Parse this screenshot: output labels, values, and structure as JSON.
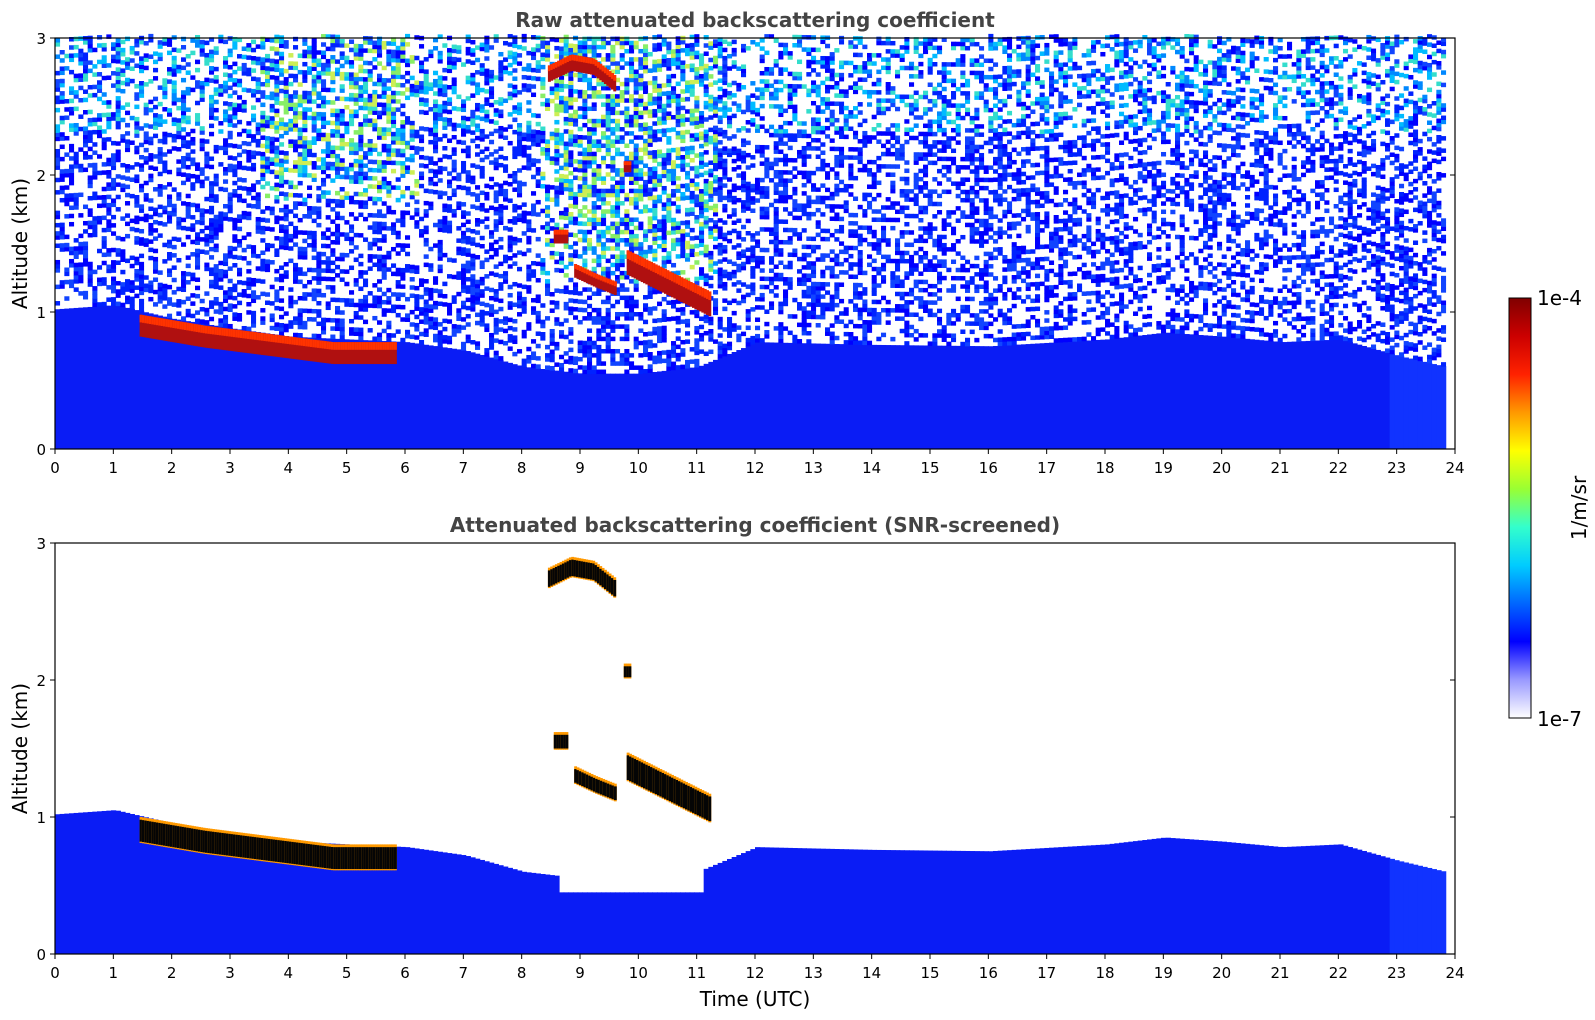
{
  "chart_data": [
    {
      "type": "heatmap",
      "title": "Raw attenuated backscattering coefficient",
      "xlabel": "",
      "ylabel": "Altitude (km)",
      "xlim": [
        0,
        24
      ],
      "ylim": [
        0,
        3
      ],
      "x_ticks": [
        "0",
        "1",
        "2",
        "3",
        "4",
        "5",
        "6",
        "7",
        "8",
        "9",
        "10",
        "11",
        "12",
        "13",
        "14",
        "15",
        "16",
        "17",
        "18",
        "19",
        "20",
        "21",
        "22",
        "23",
        "24"
      ],
      "y_ticks": [
        "0",
        "1",
        "2",
        "3"
      ],
      "data_time_range_utc": [
        0,
        23.8
      ],
      "boundary_layer_top_km": [
        {
          "x": 0,
          "y": 1.02
        },
        {
          "x": 1,
          "y": 1.05
        },
        {
          "x": 2,
          "y": 0.95
        },
        {
          "x": 3,
          "y": 0.88
        },
        {
          "x": 4,
          "y": 0.82
        },
        {
          "x": 5,
          "y": 0.8
        },
        {
          "x": 6,
          "y": 0.78
        },
        {
          "x": 7,
          "y": 0.72
        },
        {
          "x": 8,
          "y": 0.6
        },
        {
          "x": 9,
          "y": 0.55
        },
        {
          "x": 10,
          "y": 0.55
        },
        {
          "x": 11,
          "y": 0.6
        },
        {
          "x": 12,
          "y": 0.78
        },
        {
          "x": 14,
          "y": 0.76
        },
        {
          "x": 16,
          "y": 0.75
        },
        {
          "x": 18,
          "y": 0.8
        },
        {
          "x": 19,
          "y": 0.85
        },
        {
          "x": 20,
          "y": 0.82
        },
        {
          "x": 21,
          "y": 0.78
        },
        {
          "x": 22,
          "y": 0.8
        },
        {
          "x": 23,
          "y": 0.68
        },
        {
          "x": 23.8,
          "y": 0.6
        }
      ],
      "strong_layers": [
        {
          "x_start": 1.45,
          "x_end": 5.85,
          "top_km": [
            0.98,
            0.9,
            0.84,
            0.78,
            0.78
          ],
          "thickness_km": 0.16
        },
        {
          "x_start": 8.45,
          "x_end": 9.6,
          "top_km": [
            2.8,
            2.88,
            2.85,
            2.72
          ],
          "thickness_km": 0.12
        },
        {
          "x_start": 9.75,
          "x_end": 9.85,
          "top_km": [
            2.1
          ],
          "thickness_km": 0.08
        },
        {
          "x_start": 8.55,
          "x_end": 8.75,
          "top_km": [
            1.6
          ],
          "thickness_km": 0.1
        },
        {
          "x_start": 8.9,
          "x_end": 9.6,
          "top_km": [
            1.35,
            1.28,
            1.22
          ],
          "thickness_km": 0.1
        },
        {
          "x_start": 9.8,
          "x_end": 11.2,
          "top_km": [
            1.45,
            1.35,
            1.25,
            1.15
          ],
          "thickness_km": 0.18
        }
      ]
    },
    {
      "type": "heatmap",
      "title": "Attenuated backscattering coefficient (SNR-screened)",
      "xlabel": "Time (UTC)",
      "ylabel": "Altitude (km)",
      "xlim": [
        0,
        24
      ],
      "ylim": [
        0,
        3
      ],
      "x_ticks": [
        "0",
        "1",
        "2",
        "3",
        "4",
        "5",
        "6",
        "7",
        "8",
        "9",
        "10",
        "11",
        "12",
        "13",
        "14",
        "15",
        "16",
        "17",
        "18",
        "19",
        "20",
        "21",
        "22",
        "23",
        "24"
      ],
      "y_ticks": [
        "0",
        "1",
        "2",
        "3"
      ],
      "data_time_range_utc": [
        0,
        23.8
      ],
      "screened_gap": {
        "x_start": 8.6,
        "x_end": 11.1,
        "bottom_km": 0.45
      }
    }
  ],
  "colorbar": {
    "label": "1/m/sr",
    "min_label": "1e-7",
    "max_label": "1e-4",
    "scale": "log",
    "colormap": [
      "#ffffff",
      "#9999ff",
      "#0000ff",
      "#0066ff",
      "#00ccff",
      "#33ffcc",
      "#99ff33",
      "#ffff00",
      "#ff9900",
      "#ff2200",
      "#cc0000",
      "#800000"
    ]
  }
}
